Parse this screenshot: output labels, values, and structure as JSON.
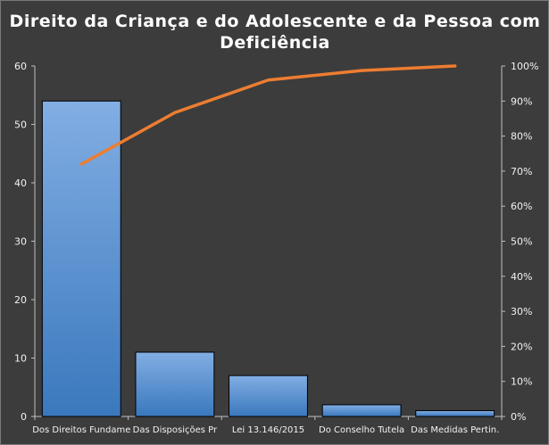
{
  "chart_data": {
    "type": "bar",
    "title_lines": [
      "Direito  da Criança  e do Adolescente  e da Pessoa  com",
      "Deficiência"
    ],
    "categories": [
      "Dos Direitos Fundame",
      "Das Disposições Pr",
      "Lei 13.146/2015",
      "Do Conselho Tutela",
      "Das Medidas Pertin."
    ],
    "series": [
      {
        "type": "bar",
        "axis": "left",
        "values": [
          54,
          11,
          7,
          2,
          1
        ]
      },
      {
        "type": "line",
        "axis": "right",
        "values": [
          0.72,
          0.867,
          0.96,
          0.987,
          1.0
        ]
      }
    ],
    "y_left": {
      "ylim": [
        0,
        60
      ],
      "ticks": [
        "0",
        "10",
        "20",
        "30",
        "40",
        "50",
        "60"
      ]
    },
    "y_right": {
      "ylim": [
        0,
        1
      ],
      "ticks": [
        "0%",
        "10%",
        "20%",
        "30%",
        "40%",
        "50%",
        "60%",
        "70%",
        "80%",
        "90%",
        "100%"
      ]
    },
    "grid": false,
    "legend": "none",
    "colors": {
      "background": "#3c3c3c",
      "bar_top": "#82aee3",
      "bar_bottom": "#3a78bd",
      "line": "#ed7d31",
      "axis": "#bfbfbf",
      "text": "#f2f2f2"
    }
  }
}
